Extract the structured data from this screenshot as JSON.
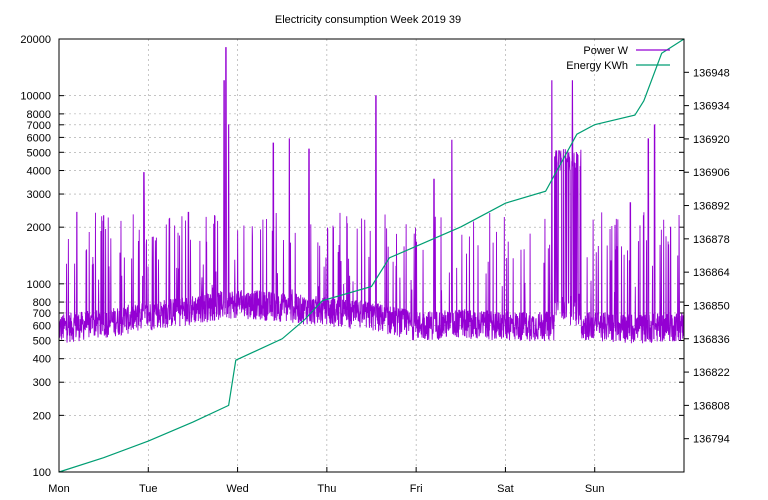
{
  "chart_data": {
    "type": "line",
    "title": "Electricity consumption Week 2019 39",
    "xlabel": "",
    "ylabel": "",
    "y2label": "",
    "x_ticks": [
      "Mon",
      "Tue",
      "Wed",
      "Thu",
      "Fri",
      "Sat",
      "Sun"
    ],
    "x_range_days": [
      0,
      7
    ],
    "y_scale": "log",
    "ylim": [
      100,
      20000
    ],
    "y_ticks": [
      100,
      200,
      300,
      400,
      500,
      600,
      700,
      800,
      1000,
      2000,
      3000,
      4000,
      5000,
      6000,
      7000,
      8000,
      10000,
      20000
    ],
    "y2lim": [
      136780,
      136962
    ],
    "y2_ticks": [
      136794,
      136808,
      136822,
      136836,
      136850,
      136864,
      136878,
      136892,
      136906,
      136920,
      136934,
      136948
    ],
    "grid": true,
    "legend_position": "top-right",
    "series": [
      {
        "name": "Power W",
        "axis": "y",
        "color": "#9400d3",
        "day_points": [
          0,
          0.5,
          1,
          1.5,
          2,
          2.5,
          3,
          3.5,
          4,
          4.5,
          5,
          5.5,
          6,
          6.5,
          7
        ],
        "baseline": [
          600,
          640,
          700,
          760,
          820,
          780,
          740,
          700,
          620,
          640,
          620,
          620,
          620,
          600,
          620
        ],
        "peaks": [
          {
            "day": 0.2,
            "value": 2400
          },
          {
            "day": 0.5,
            "value": 2300
          },
          {
            "day": 0.95,
            "value": 3900
          },
          {
            "day": 1.45,
            "value": 2400
          },
          {
            "day": 1.85,
            "value": 12000
          },
          {
            "day": 1.87,
            "value": 18000
          },
          {
            "day": 1.9,
            "value": 7000
          },
          {
            "day": 2.4,
            "value": 5600
          },
          {
            "day": 2.58,
            "value": 5900
          },
          {
            "day": 2.8,
            "value": 5200
          },
          {
            "day": 3.55,
            "value": 10000
          },
          {
            "day": 4.2,
            "value": 3600
          },
          {
            "day": 4.4,
            "value": 5800
          },
          {
            "day": 5.52,
            "value": 12000
          },
          {
            "day": 5.6,
            "value": 5100
          },
          {
            "day": 5.75,
            "value": 12000
          },
          {
            "day": 6.4,
            "value": 2700
          },
          {
            "day": 6.6,
            "value": 5900
          },
          {
            "day": 6.67,
            "value": 7000
          },
          {
            "day": 6.85,
            "value": 2000
          }
        ]
      },
      {
        "name": "Energy KWh",
        "axis": "y2",
        "color": "#009e73",
        "x": [
          0,
          0.5,
          1,
          1.5,
          1.9,
          1.98,
          2.5,
          2.75,
          2.95,
          3.5,
          3.7,
          4.5,
          5.0,
          5.45,
          5.8,
          6.0,
          6.45,
          6.55,
          6.75,
          7.0
        ],
        "y": [
          136780,
          136786,
          136793,
          136801,
          136808,
          136827,
          136836,
          136844,
          136852,
          136858,
          136870,
          136883,
          136893,
          136898,
          136922,
          136926,
          136930,
          136936,
          136956,
          136962
        ]
      }
    ]
  }
}
